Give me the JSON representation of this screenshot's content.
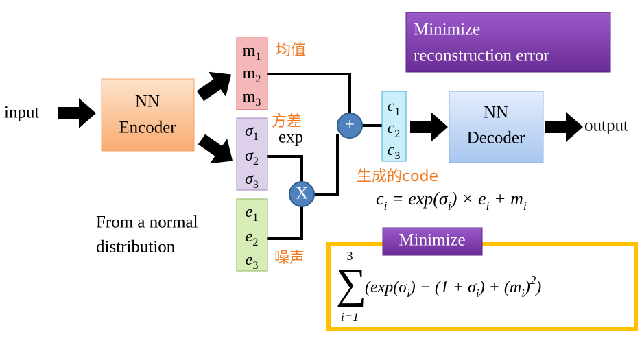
{
  "input": "input",
  "encoder": {
    "lines": [
      "NN",
      "Encoder"
    ]
  },
  "means": {
    "label": "均值",
    "items": [
      {
        "base": "m",
        "sub": "1"
      },
      {
        "base": "m",
        "sub": "2"
      },
      {
        "base": "m",
        "sub": "3"
      }
    ]
  },
  "variances": {
    "label": "方差",
    "exp": "exp",
    "items": [
      {
        "base": "σ",
        "sub": "1"
      },
      {
        "base": "σ",
        "sub": "2"
      },
      {
        "base": "σ",
        "sub": "3"
      }
    ]
  },
  "noise": {
    "label": "噪声",
    "source": [
      "From a normal",
      "distribution"
    ],
    "items": [
      {
        "base": "e",
        "sub": "1"
      },
      {
        "base": "e",
        "sub": "2"
      },
      {
        "base": "e",
        "sub": "3"
      }
    ]
  },
  "plus": "+",
  "times": "X",
  "code": {
    "label": "生成的code",
    "items": [
      {
        "base": "c",
        "sub": "1"
      },
      {
        "base": "c",
        "sub": "2"
      },
      {
        "base": "c",
        "sub": "3"
      }
    ]
  },
  "decoder": {
    "lines": [
      "NN",
      "Decoder"
    ]
  },
  "output": "output",
  "reconstruction": [
    "Minimize",
    "reconstruction error"
  ],
  "formula": [
    {
      "text": "c"
    },
    {
      "sub": "i"
    },
    {
      "text": " = exp(σ"
    },
    {
      "sub": "i"
    },
    {
      "text": ") × e"
    },
    {
      "sub": "i"
    },
    {
      "text": " + m"
    },
    {
      "sub": "i"
    }
  ],
  "regularizer": {
    "title": "Minimize",
    "sum": "∑",
    "upper": "3",
    "lower": "i=1",
    "expr": [
      {
        "text": "(exp(σ"
      },
      {
        "sub": "i"
      },
      {
        "text": ") − (1 + σ"
      },
      {
        "sub": "i"
      },
      {
        "text": ") + (m"
      },
      {
        "sub": "i"
      },
      {
        "text": ")"
      },
      {
        "sup": "2"
      },
      {
        "text": ")"
      }
    ]
  }
}
